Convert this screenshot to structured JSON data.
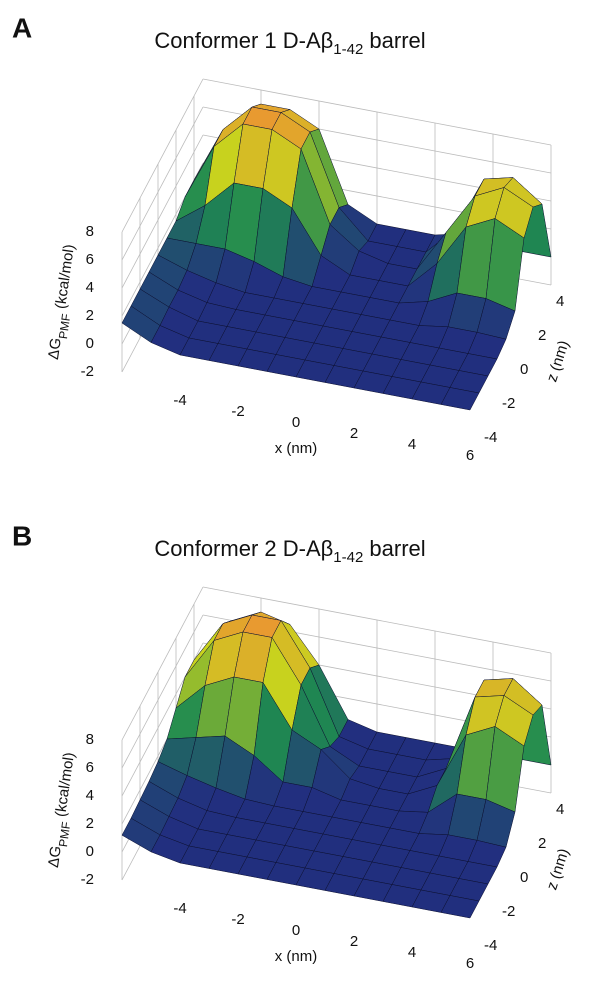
{
  "chart_data": [
    {
      "type": "surface",
      "panel": "A",
      "title": {
        "text": "Conformer 1 D-Aβ",
        "subscript": "1-42",
        "suffix": " barrel"
      },
      "x_label": "x (nm)",
      "z_label": "z (nm)",
      "y_label": {
        "text": "ΔG",
        "subscript": "PMF",
        "suffix": " (kcal/mol)"
      },
      "xlim": [
        -6,
        6
      ],
      "zlim": [
        -4,
        5
      ],
      "ylim": [
        -2,
        8
      ],
      "xticks": [
        -4,
        -2,
        0,
        2,
        4,
        6
      ],
      "zticks": [
        -4,
        -2,
        0,
        2,
        4
      ],
      "yticks": [
        -2,
        0,
        2,
        4,
        6,
        8
      ],
      "grid": true,
      "colorscale": [
        "#1f2a7c",
        "#22307f",
        "#1f8a50",
        "#c8d21e",
        "#e89a30"
      ],
      "x": [
        -6,
        -5,
        -4,
        -3,
        -2,
        -1,
        0,
        1,
        2,
        3,
        4,
        5,
        6
      ],
      "z": [
        -4,
        -3,
        -2,
        -1,
        0,
        1,
        2,
        3,
        4,
        5
      ],
      "values": [
        [
          1.5,
          0.5,
          0,
          0,
          0,
          0,
          0,
          0,
          0,
          0,
          0,
          0,
          0
        ],
        [
          1.5,
          0.5,
          0,
          0,
          0,
          0,
          0,
          0,
          0,
          0,
          0,
          0,
          0
        ],
        [
          1.5,
          0.6,
          0,
          0,
          0,
          0,
          0,
          0,
          0,
          0,
          0,
          0,
          0
        ],
        [
          1.5,
          0.6,
          0.1,
          0,
          0,
          0,
          0,
          0,
          0,
          0,
          0,
          0,
          0
        ],
        [
          1.5,
          0.8,
          0.3,
          0,
          0,
          0,
          0,
          0,
          0,
          0,
          0.3,
          0.3,
          0.2
        ],
        [
          1.5,
          1.5,
          1.5,
          1,
          0.3,
          0,
          0,
          0,
          0,
          0.5,
          1.5,
          1.5,
          1
        ],
        [
          1.5,
          3,
          5,
          5,
          4,
          1,
          0,
          0,
          0,
          2,
          5,
          6,
          5
        ],
        [
          2,
          6,
          8,
          8,
          7,
          2,
          0.5,
          0,
          0,
          3,
          6,
          7,
          6
        ],
        [
          2,
          6,
          8,
          8,
          7,
          2,
          0,
          0,
          0,
          2,
          6,
          6.5,
          5
        ],
        [
          1,
          5,
          7,
          7,
          6,
          1,
          0,
          0,
          0,
          0.5,
          0,
          0,
          0
        ]
      ]
    },
    {
      "type": "surface",
      "panel": "B",
      "title": {
        "text": "Conformer 2 D-Aβ",
        "subscript": "1-42",
        "suffix": " barrel"
      },
      "x_label": "x (nm)",
      "z_label": "z (nm)",
      "y_label": {
        "text": "ΔG",
        "subscript": "PMF",
        "suffix": " (kcal/mol)"
      },
      "xlim": [
        -6,
        6
      ],
      "zlim": [
        -4,
        5
      ],
      "ylim": [
        -2,
        8
      ],
      "xticks": [
        -4,
        -2,
        0,
        2,
        4,
        6
      ],
      "zticks": [
        -4,
        -2,
        0,
        2,
        4
      ],
      "yticks": [
        -2,
        0,
        2,
        4,
        6,
        8
      ],
      "grid": true,
      "colorscale": [
        "#1f2a7c",
        "#22307f",
        "#1f8a50",
        "#c8d21e",
        "#e89a30"
      ],
      "x": [
        -6,
        -5,
        -4,
        -3,
        -2,
        -1,
        0,
        1,
        2,
        3,
        4,
        5,
        6
      ],
      "z": [
        -4,
        -3,
        -2,
        -1,
        0,
        1,
        2,
        3,
        4,
        5
      ],
      "values": [
        [
          1.2,
          0.4,
          0,
          0,
          0,
          0,
          0,
          0,
          0,
          0,
          0,
          0,
          0
        ],
        [
          1.2,
          0.4,
          0,
          0,
          0,
          0,
          0,
          0,
          0,
          0,
          0,
          0,
          0
        ],
        [
          1.3,
          0.5,
          0,
          0,
          0,
          0,
          0,
          0,
          0,
          0,
          0,
          0,
          0
        ],
        [
          1.4,
          0.6,
          0.1,
          0,
          0,
          0,
          0,
          0,
          0,
          0,
          0,
          0,
          0
        ],
        [
          1.6,
          1,
          0.5,
          0.1,
          0,
          0,
          0,
          0,
          0,
          0,
          0.3,
          0.3,
          0.2
        ],
        [
          2,
          2.5,
          3,
          2,
          0.5,
          0.5,
          0,
          0,
          0,
          0.3,
          2,
          2,
          1.5
        ],
        [
          3,
          5,
          6,
          6,
          3,
          2,
          0.3,
          0,
          0,
          1,
          5,
          6,
          5
        ],
        [
          4,
          7,
          8,
          8,
          5,
          1,
          0,
          0,
          0,
          1,
          6.5,
          7,
          6
        ],
        [
          4,
          7,
          8,
          8,
          5,
          0.5,
          0,
          0,
          0,
          0.5,
          6.5,
          7,
          5.5
        ],
        [
          3,
          6,
          7,
          6.5,
          4,
          0.5,
          0,
          0,
          0,
          0,
          0,
          0,
          0
        ]
      ]
    }
  ]
}
